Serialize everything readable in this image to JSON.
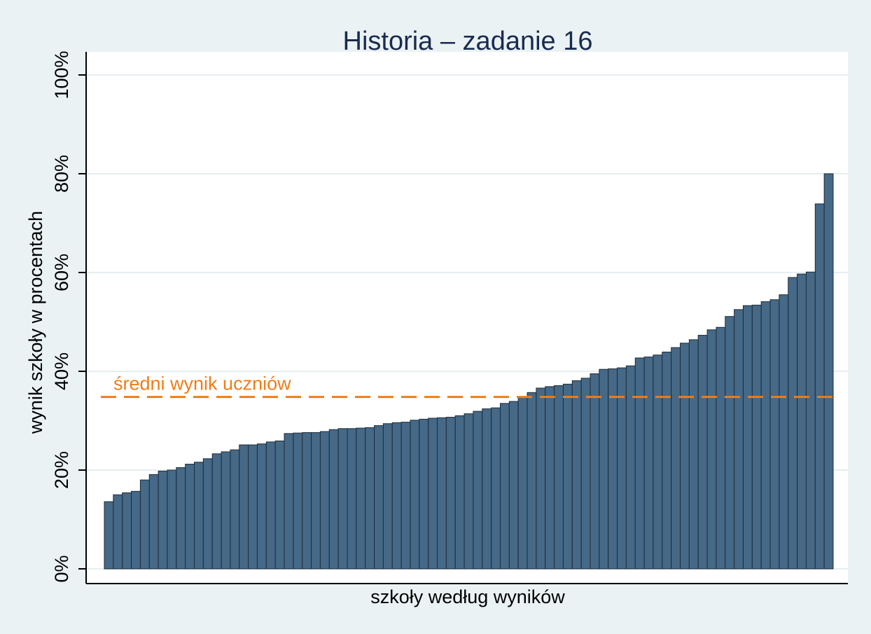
{
  "chart_data": {
    "type": "bar",
    "title": "Historia – zadanie 16",
    "xlabel": "szkoły według wyników",
    "ylabel": "wynik szkoły w procentach",
    "ylim": [
      0,
      100
    ],
    "y_ticks": [
      {
        "value": 0,
        "label": "0%"
      },
      {
        "value": 20,
        "label": "20%"
      },
      {
        "value": 40,
        "label": "40%"
      },
      {
        "value": 60,
        "label": "60%"
      },
      {
        "value": 80,
        "label": "80%"
      },
      {
        "value": 100,
        "label": "100%"
      }
    ],
    "grid": true,
    "reference_line": {
      "value": 34.8,
      "label": "średni wynik uczniów",
      "style": "dashed"
    },
    "values": [
      13.6,
      15.0,
      15.4,
      15.7,
      18.0,
      19.1,
      19.8,
      20.0,
      20.5,
      21.2,
      21.6,
      22.3,
      23.3,
      23.7,
      24.1,
      25.1,
      25.1,
      25.3,
      25.7,
      25.9,
      27.4,
      27.5,
      27.6,
      27.6,
      27.8,
      28.2,
      28.4,
      28.4,
      28.5,
      28.6,
      29.0,
      29.4,
      29.6,
      29.7,
      30.1,
      30.3,
      30.5,
      30.6,
      30.7,
      31.0,
      31.4,
      31.9,
      32.4,
      32.6,
      33.5,
      33.9,
      34.8,
      35.7,
      36.6,
      36.9,
      37.1,
      37.4,
      38.1,
      38.6,
      39.5,
      40.4,
      40.5,
      40.7,
      41.1,
      42.7,
      42.9,
      43.3,
      43.9,
      44.8,
      45.7,
      46.4,
      47.3,
      48.4,
      48.9,
      51.1,
      52.5,
      53.3,
      53.4,
      54.1,
      54.5,
      55.5,
      59.0,
      59.7,
      60.1,
      73.9,
      80.0
    ],
    "colors": {
      "bar_fill": "#456987",
      "bar_stroke": "#1e2c3a",
      "reference_line": "#ef7d17",
      "plot_background": "#ffffff",
      "outer_background": "#eaf2f3",
      "gridline": "#e6eef0",
      "title": "#1a2b50"
    }
  }
}
